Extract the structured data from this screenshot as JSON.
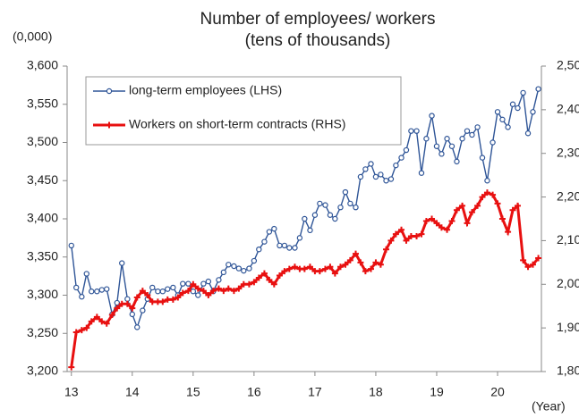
{
  "chart_data": {
    "type": "line",
    "title": "Number of employees/ workers",
    "subtitle": "(tens of thousands)",
    "y_label": "(0,000)",
    "x_label": "(Year)",
    "x": [
      13,
      13.08,
      13.17,
      13.25,
      13.33,
      13.42,
      13.5,
      13.58,
      13.67,
      13.75,
      13.83,
      13.92,
      14,
      14.08,
      14.17,
      14.25,
      14.33,
      14.42,
      14.5,
      14.58,
      14.67,
      14.75,
      14.83,
      14.92,
      15,
      15.08,
      15.17,
      15.25,
      15.33,
      15.42,
      15.5,
      15.58,
      15.67,
      15.75,
      15.83,
      15.92,
      16,
      16.08,
      16.17,
      16.25,
      16.33,
      16.42,
      16.5,
      16.58,
      16.67,
      16.75,
      16.83,
      16.92,
      17,
      17.08,
      17.17,
      17.25,
      17.33,
      17.42,
      17.5,
      17.58,
      17.67,
      17.75,
      17.83,
      17.92,
      18,
      18.08,
      18.17,
      18.25,
      18.33,
      18.42,
      18.5,
      18.58,
      18.67,
      18.75,
      18.83,
      18.92,
      19,
      19.08,
      19.17,
      19.25,
      19.33,
      19.42,
      19.5,
      19.58,
      19.67,
      19.75,
      19.83,
      19.92,
      20,
      20.08,
      20.17,
      20.25,
      20.33,
      20.42,
      20.5,
      20.58,
      20.67
    ],
    "series": [
      {
        "name": "long-term employees (LHS)",
        "color": "#2f5597",
        "marker": "circle",
        "values": [
          3365,
          3310,
          3298,
          3328,
          3305,
          3305,
          3307,
          3308,
          3275,
          3290,
          3342,
          3295,
          3275,
          3258,
          3280,
          3295,
          3310,
          3305,
          3305,
          3308,
          3310,
          3300,
          3315,
          3315,
          3305,
          3300,
          3315,
          3318,
          3305,
          3320,
          3330,
          3340,
          3338,
          3335,
          3332,
          3335,
          3345,
          3360,
          3370,
          3383,
          3387,
          3365,
          3365,
          3362,
          3362,
          3375,
          3400,
          3385,
          3405,
          3420,
          3418,
          3405,
          3400,
          3415,
          3435,
          3420,
          3415,
          3455,
          3465,
          3472,
          3455,
          3458,
          3450,
          3452,
          3470,
          3480,
          3490,
          3515,
          3515,
          3460,
          3505,
          3535,
          3495,
          3485,
          3505,
          3495,
          3475,
          3505,
          3515,
          3510,
          3520,
          3480,
          3450,
          3500,
          3540,
          3530,
          3520,
          3550,
          3545,
          3565,
          3512,
          3540,
          3570
        ]
      },
      {
        "name": "Workers on short-term contracts (RHS)",
        "color": "#e81010",
        "marker": "plus",
        "axis": "y2",
        "values": [
          1810,
          1890,
          1895,
          1900,
          1915,
          1925,
          1915,
          1910,
          1930,
          1945,
          1955,
          1955,
          1945,
          1970,
          1985,
          1975,
          1960,
          1960,
          1960,
          1965,
          1965,
          1970,
          1980,
          1985,
          2000,
          1990,
          1985,
          1975,
          1985,
          1990,
          1985,
          1990,
          1985,
          1990,
          2000,
          2000,
          2005,
          2015,
          2025,
          2010,
          2000,
          2020,
          2030,
          2035,
          2040,
          2035,
          2035,
          2040,
          2030,
          2030,
          2035,
          2040,
          2025,
          2040,
          2045,
          2055,
          2070,
          2050,
          2030,
          2035,
          2050,
          2045,
          2080,
          2100,
          2115,
          2125,
          2100,
          2110,
          2110,
          2115,
          2145,
          2150,
          2140,
          2130,
          2125,
          2145,
          2170,
          2180,
          2140,
          2165,
          2180,
          2200,
          2210,
          2205,
          2185,
          2150,
          2120,
          2170,
          2180,
          2055,
          2040,
          2045,
          2060
        ]
      }
    ],
    "xlim": [
      12.93,
      20.72
    ],
    "xticks": [
      13,
      14,
      15,
      16,
      17,
      18,
      19,
      20
    ],
    "ylim": [
      3200,
      3600
    ],
    "yticks": [
      {
        "value": 3200,
        "label": "3,200"
      },
      {
        "value": 3250,
        "label": "3,250"
      },
      {
        "value": 3300,
        "label": "3,300"
      },
      {
        "value": 3350,
        "label": "3,350"
      },
      {
        "value": 3400,
        "label": "3,400"
      },
      {
        "value": 3450,
        "label": "3,450"
      },
      {
        "value": 3500,
        "label": "3,500"
      },
      {
        "value": 3550,
        "label": "3,550"
      },
      {
        "value": 3600,
        "label": "3,600"
      }
    ],
    "y2lim": [
      1800,
      2500
    ],
    "y2ticks": [
      {
        "value": 1800,
        "label": "1,800"
      },
      {
        "value": 1900,
        "label": "1,900"
      },
      {
        "value": 2000,
        "label": "2,000"
      },
      {
        "value": 2100,
        "label": "2,100"
      },
      {
        "value": 2200,
        "label": "2,200"
      },
      {
        "value": 2300,
        "label": "2,300"
      },
      {
        "value": 2400,
        "label": "2,400"
      },
      {
        "value": 2500,
        "label": "2,500"
      }
    ],
    "grid": false,
    "legend": "upper left"
  }
}
